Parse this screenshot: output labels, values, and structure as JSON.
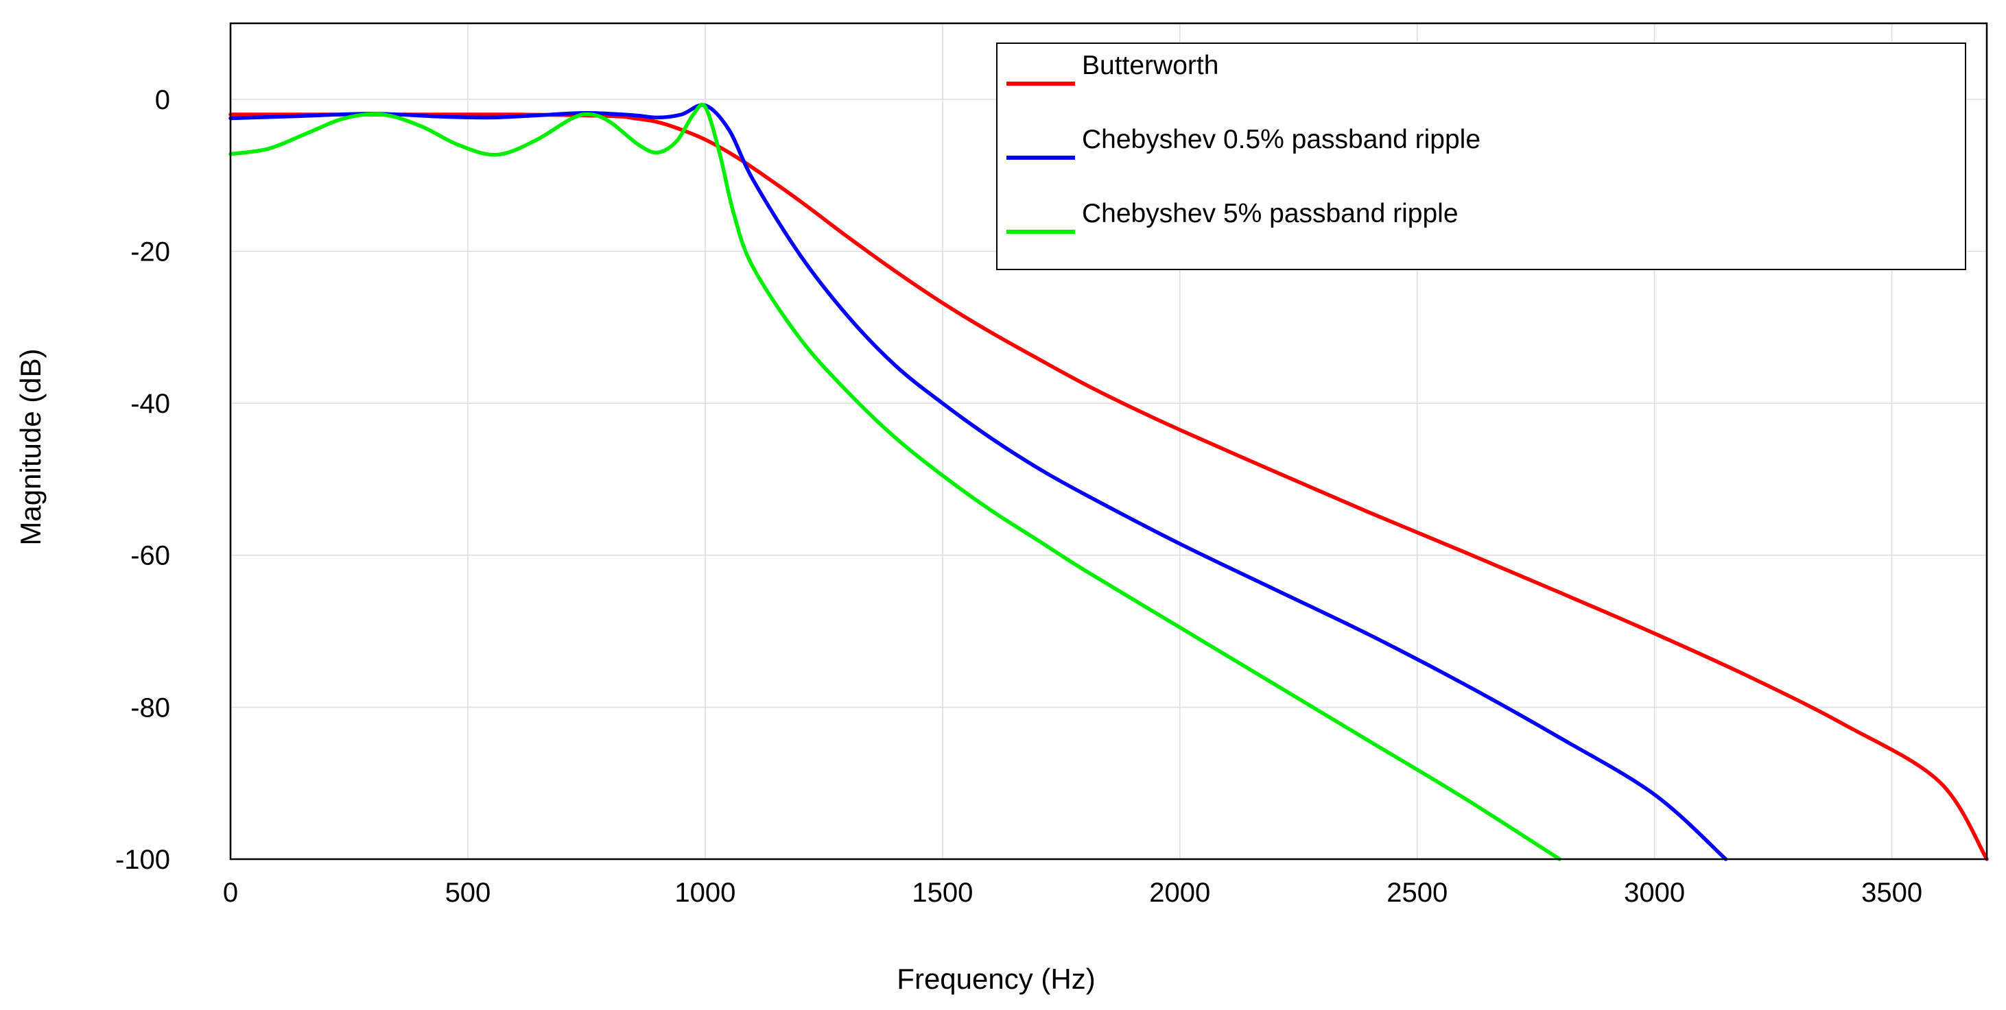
{
  "chart_data": {
    "type": "line",
    "title": "",
    "xlabel": "Frequency (Hz)",
    "ylabel": "Magnitude (dB)",
    "xlim": [
      0,
      3700
    ],
    "ylim": [
      -100,
      10
    ],
    "xticks": [
      0,
      500,
      1000,
      1500,
      2000,
      2500,
      3000,
      3500
    ],
    "yticks": [
      -100,
      -80,
      -60,
      -40,
      -20,
      0
    ],
    "xtick_labels": [
      "0",
      "500",
      "1000",
      "1500",
      "2000",
      "2500",
      "3000",
      "3500"
    ],
    "ytick_labels": [
      "-100",
      "-80",
      "-60",
      "-40",
      "-20",
      "0"
    ],
    "grid": true,
    "legend_position": "top-right",
    "series": [
      {
        "name": "Butterworth",
        "color": "#ff0000",
        "x": [
          0,
          200,
          400,
          600,
          800,
          850,
          900,
          950,
          1000,
          1050,
          1100,
          1200,
          1300,
          1400,
          1500,
          1600,
          1700,
          1800,
          1900,
          2000,
          2200,
          2400,
          2600,
          2800,
          3000,
          3200,
          3400,
          3600,
          3700
        ],
        "y": [
          -2,
          -2,
          -2,
          -2,
          -2.2,
          -2.5,
          -3.0,
          -4.0,
          -5.3,
          -7.0,
          -9.0,
          -13.4,
          -18.1,
          -22.6,
          -26.8,
          -30.6,
          -34.1,
          -37.5,
          -40.6,
          -43.5,
          -49.0,
          -54.4,
          -59.6,
          -64.9,
          -70.3,
          -76.0,
          -82.3,
          -89.8,
          -100
        ]
      },
      {
        "name": "Chebyshev 0.5% passband ripple",
        "color": "#0000ff",
        "x": [
          0,
          150,
          300,
          450,
          550,
          650,
          750,
          850,
          900,
          950,
          1000,
          1050,
          1100,
          1200,
          1300,
          1400,
          1500,
          1600,
          1700,
          1800,
          2000,
          2200,
          2400,
          2600,
          2800,
          3000,
          3150
        ],
        "y": [
          -2.5,
          -2.2,
          -1.9,
          -2.3,
          -2.4,
          -2.1,
          -1.8,
          -2.1,
          -2.4,
          -2.0,
          -0.8,
          -4.0,
          -10.5,
          -20.5,
          -28.5,
          -35.0,
          -40.0,
          -44.5,
          -48.5,
          -52.0,
          -58.5,
          -64.5,
          -70.5,
          -77.0,
          -84.0,
          -91.5,
          -100
        ]
      },
      {
        "name": "Chebyshev 5% passband ripple",
        "color": "#00ee00",
        "x": [
          0,
          80,
          160,
          240,
          320,
          400,
          480,
          560,
          640,
          720,
          760,
          800,
          860,
          900,
          940,
          975,
          1000,
          1030,
          1060,
          1100,
          1200,
          1300,
          1400,
          1500,
          1600,
          1700,
          1800,
          2000,
          2200,
          2400,
          2600,
          2800
        ],
        "y": [
          -7.2,
          -6.5,
          -4.5,
          -2.5,
          -2.0,
          -3.5,
          -6.0,
          -7.3,
          -5.5,
          -2.5,
          -2.0,
          -3.0,
          -6.0,
          -7.0,
          -5.5,
          -2.0,
          -1.0,
          -7.0,
          -15.0,
          -22.0,
          -31.5,
          -38.5,
          -44.5,
          -49.5,
          -54.0,
          -58.0,
          -62.0,
          -69.5,
          -77.0,
          -84.5,
          -92.0,
          -100
        ]
      }
    ]
  }
}
